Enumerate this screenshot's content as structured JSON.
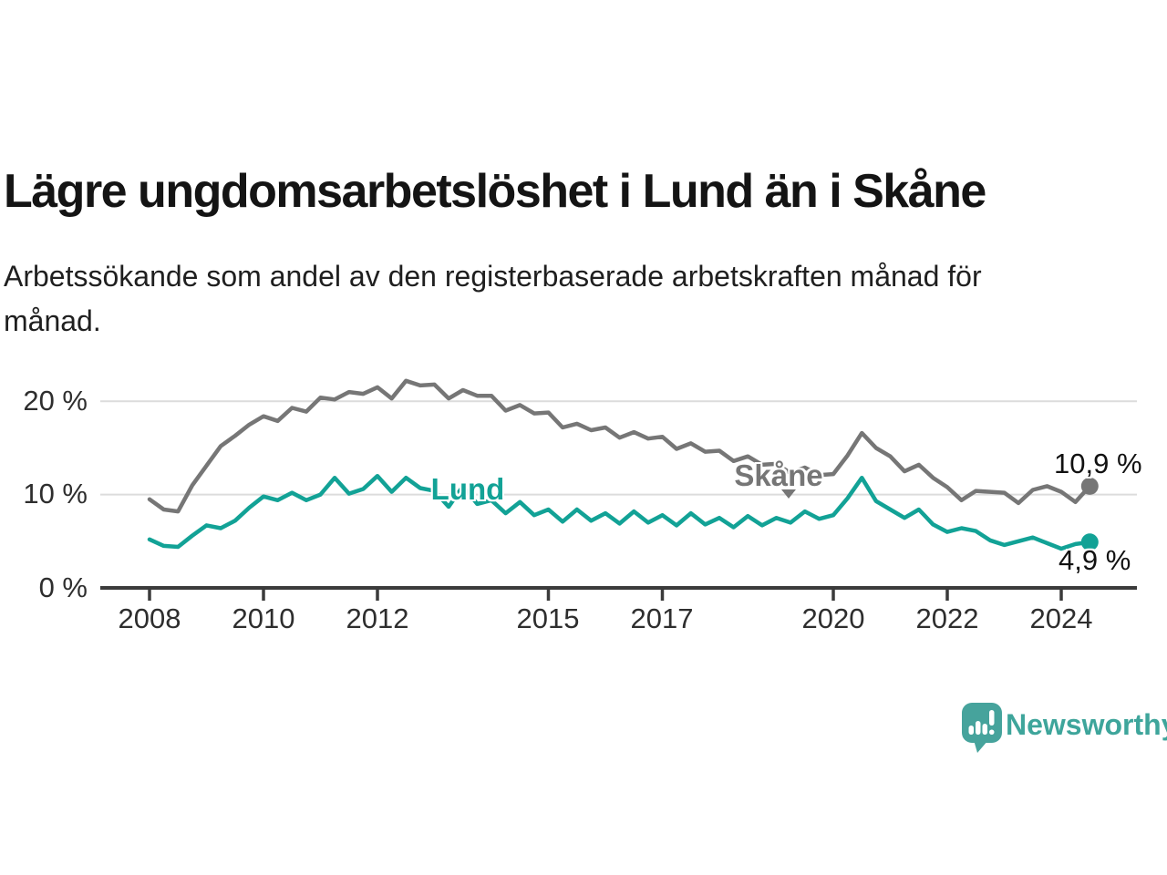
{
  "header": {
    "title": "Lägre ungdomsarbetslöshet i Lund än i Skåne",
    "subtitle": "Arbetssökande som andel av den registerbaserade arbetskraften månad för\nmånad."
  },
  "chart_data": {
    "type": "line",
    "title": "Lägre ungdomsarbetslöshet i Lund än i Skåne",
    "subtitle": "Arbetssökande som andel av den registerbaserade arbetskraften månad för månad.",
    "unit": "%",
    "ylim": [
      0,
      23
    ],
    "grid": "horizontal-only",
    "legend_position": "inline-labels-on-lines",
    "y_ticks": [
      {
        "value": 20,
        "label": "20 %"
      },
      {
        "value": 10,
        "label": "10 %"
      },
      {
        "value": 0,
        "label": "0 %"
      }
    ],
    "x_ticks": [
      {
        "value": 2008,
        "label": "2008"
      },
      {
        "value": 2010,
        "label": "2010"
      },
      {
        "value": 2012,
        "label": "2012"
      },
      {
        "value": 2015,
        "label": "2015"
      },
      {
        "value": 2017,
        "label": "2017"
      },
      {
        "value": 2020,
        "label": "2020"
      },
      {
        "value": 2022,
        "label": "2022"
      },
      {
        "value": 2024,
        "label": "2024"
      }
    ],
    "x": [
      2008,
      2008.25,
      2008.5,
      2008.75,
      2009,
      2009.25,
      2009.5,
      2009.75,
      2010,
      2010.25,
      2010.5,
      2010.75,
      2011,
      2011.25,
      2011.5,
      2011.75,
      2012,
      2012.25,
      2012.5,
      2012.75,
      2013,
      2013.25,
      2013.5,
      2013.75,
      2014,
      2014.25,
      2014.5,
      2014.75,
      2015,
      2015.25,
      2015.5,
      2015.75,
      2016,
      2016.25,
      2016.5,
      2016.75,
      2017,
      2017.25,
      2017.5,
      2017.75,
      2018,
      2018.25,
      2018.5,
      2018.75,
      2019,
      2019.25,
      2019.5,
      2019.75,
      2020,
      2020.25,
      2020.5,
      2020.75,
      2021,
      2021.25,
      2021.5,
      2021.75,
      2022,
      2022.25,
      2022.5,
      2022.75,
      2023,
      2023.25,
      2023.5,
      2023.75,
      2024,
      2024.25,
      2024.5
    ],
    "series": [
      {
        "name": "Skåne",
        "color": "#767676",
        "end_label": "10,9 %",
        "end_value": 10.9,
        "values": [
          9.5,
          8.4,
          8.2,
          11.0,
          13.1,
          15.2,
          16.3,
          17.5,
          18.4,
          17.9,
          19.3,
          18.9,
          20.4,
          20.2,
          21.0,
          20.8,
          21.5,
          20.3,
          22.2,
          21.7,
          21.8,
          20.3,
          21.2,
          20.6,
          20.6,
          19.0,
          19.6,
          18.7,
          18.8,
          17.2,
          17.6,
          16.9,
          17.2,
          16.1,
          16.7,
          16.0,
          16.2,
          14.9,
          15.5,
          14.6,
          14.7,
          13.6,
          14.1,
          13.2,
          13.3,
          12.3,
          12.9,
          12.1,
          12.2,
          14.2,
          16.6,
          15.0,
          14.1,
          12.5,
          13.2,
          11.8,
          10.8,
          9.4,
          10.4,
          10.3,
          10.2,
          9.1,
          10.5,
          10.9,
          10.3,
          9.2,
          10.9
        ]
      },
      {
        "name": "Lund",
        "color": "#12a296",
        "end_label": "4,9 %",
        "end_value": 4.9,
        "values": [
          5.2,
          4.5,
          4.4,
          5.6,
          6.7,
          6.4,
          7.2,
          8.6,
          9.8,
          9.4,
          10.2,
          9.4,
          10.0,
          11.8,
          10.1,
          10.6,
          12.0,
          10.3,
          11.8,
          10.7,
          10.4,
          8.7,
          10.9,
          9.0,
          9.4,
          8.0,
          9.2,
          7.8,
          8.4,
          7.1,
          8.4,
          7.2,
          8.0,
          6.9,
          8.2,
          7.0,
          7.8,
          6.7,
          8.0,
          6.8,
          7.5,
          6.5,
          7.7,
          6.7,
          7.5,
          7.0,
          8.2,
          7.4,
          7.8,
          9.6,
          11.8,
          9.3,
          8.4,
          7.5,
          8.4,
          6.8,
          6.0,
          6.4,
          6.1,
          5.1,
          4.6,
          5.0,
          5.4,
          4.8,
          4.2,
          4.7,
          4.9
        ]
      }
    ],
    "colors": {
      "axis": "#3b3b3b",
      "gridline": "#dcdcdc",
      "skane": "#767676",
      "lund": "#12a296"
    }
  },
  "footer": {
    "brand": "Newsworthy",
    "brand_color": "#3ea59b",
    "logo_icon": "newsworthy-speech-bubble-bar-chart"
  }
}
